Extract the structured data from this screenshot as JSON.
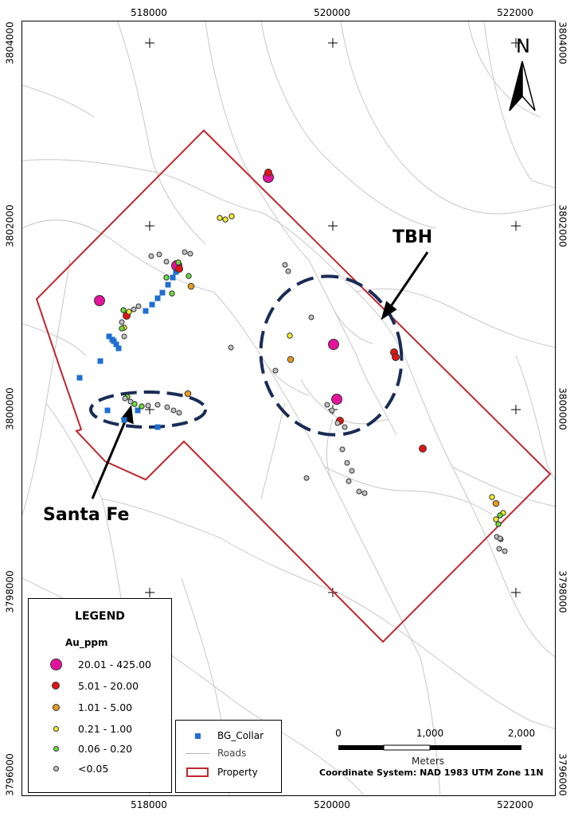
{
  "map": {
    "x_ticks": [
      "518000",
      "520000",
      "522000"
    ],
    "y_ticks": [
      "3804000",
      "3802000",
      "3800000",
      "3798000",
      "3796000"
    ],
    "north": "N",
    "colors": {
      "property": "#c0272d",
      "targets": "#1a2c55",
      "roads": "#c8c8c8",
      "collar": "#1f6fd1",
      "au_20_425": "#e5129c",
      "au_5_20": "#e01414",
      "au_1_5": "#e89a1e",
      "au_021_1": "#f2ee2e",
      "au_006_02": "#6cdc3c",
      "au_lt005": "#c2c2c2"
    }
  },
  "callouts": {
    "tbh": "TBH",
    "santa_fe": "Santa Fe"
  },
  "legend": {
    "title": "LEGEND",
    "field": "Au_ppm",
    "classes": [
      {
        "label": "20.01 - 425.00",
        "color": "#e5129c",
        "size": 14
      },
      {
        "label": "5.01 - 20.00",
        "color": "#e01414",
        "size": 10
      },
      {
        "label": "1.01 - 5.00",
        "color": "#e89a1e",
        "size": 8
      },
      {
        "label": "0.21 - 1.00",
        "color": "#f2ee2e",
        "size": 7
      },
      {
        "label": "0.06 - 0.20",
        "color": "#6cdc3c",
        "size": 6
      },
      {
        "label": "<0.05",
        "color": "#c2c2c2",
        "size": 6
      }
    ]
  },
  "legend2": {
    "collar": "BG_Collar",
    "roads": "Roads",
    "property": "Property"
  },
  "scalebar": {
    "labels": [
      "0",
      "1,000",
      "2,000"
    ],
    "units": "Meters",
    "coord_system": "Coordinate System: NAD 1983 UTM Zone 11N"
  }
}
